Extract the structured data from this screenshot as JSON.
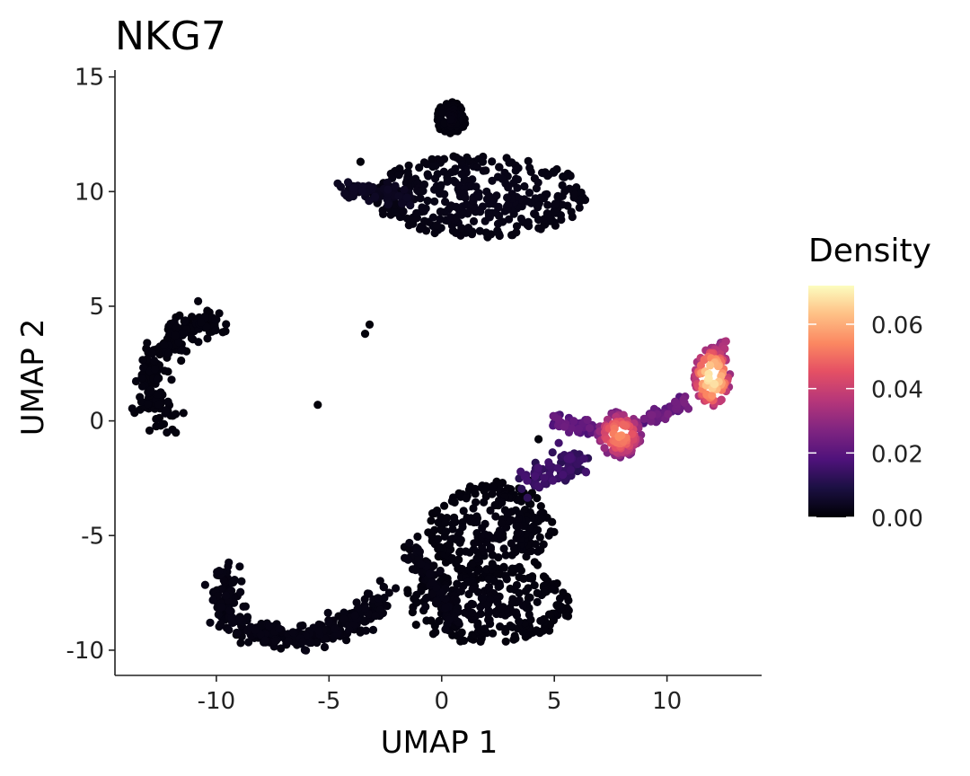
{
  "chart_data": {
    "type": "scatter",
    "title": "NKG7",
    "xlabel": "UMAP 1",
    "ylabel": "UMAP 2",
    "xlim": [
      -14.5,
      14.2
    ],
    "ylim": [
      -11.1,
      15.3
    ],
    "x_ticks": [
      -10,
      -5,
      0,
      5,
      10
    ],
    "x_tick_labels": [
      "-10",
      "-5",
      "0",
      "5",
      "10"
    ],
    "y_ticks": [
      -10,
      -5,
      0,
      5,
      10,
      15
    ],
    "y_tick_labels": [
      "-10",
      "-5",
      "0",
      "5",
      "10",
      "15"
    ],
    "color_variable": "Density",
    "colorscale": "magma",
    "color_range": [
      0.0,
      0.072
    ],
    "legend": {
      "title": "Density",
      "ticks": [
        0.0,
        0.02,
        0.04,
        0.06
      ],
      "tick_labels": [
        "0.00",
        "0.02",
        "0.04",
        "0.06"
      ],
      "position": "right"
    },
    "clusters": [
      {
        "name": "top-cluster",
        "shape": "blob",
        "cx": 1.8,
        "cy": 9.8,
        "rx": 5.0,
        "ry": 1.8,
        "density": 0.003
      },
      {
        "name": "top-tail",
        "shape": "path",
        "points": [
          [
            -4.5,
            10.2
          ],
          [
            -3.0,
            10.0
          ],
          [
            -1.5,
            9.8
          ]
        ],
        "spread": 0.3,
        "density": 0.004
      },
      {
        "name": "top-knob",
        "shape": "blob",
        "cx": 0.4,
        "cy": 13.2,
        "rx": 0.7,
        "ry": 0.7,
        "density": 0.002
      },
      {
        "name": "left-cluster",
        "shape": "path",
        "points": [
          [
            -10.0,
            4.5
          ],
          [
            -11.5,
            4.0
          ],
          [
            -12.8,
            2.5
          ],
          [
            -13.0,
            1.0
          ],
          [
            -12.0,
            0.0
          ]
        ],
        "spread": 0.6,
        "density": 0.0015
      },
      {
        "name": "bottom-arc",
        "shape": "path",
        "points": [
          [
            -9.5,
            -6.5
          ],
          [
            -9.7,
            -8.2
          ],
          [
            -8.5,
            -9.2
          ],
          [
            -6.5,
            -9.5
          ],
          [
            -4.5,
            -9.0
          ],
          [
            -3.0,
            -8.3
          ],
          [
            -2.5,
            -7.6
          ]
        ],
        "spread": 0.55,
        "density": 0.002
      },
      {
        "name": "center-cluster",
        "shape": "blob",
        "cx": 2.2,
        "cy": -4.8,
        "rx": 2.8,
        "ry": 2.2,
        "density": 0.002
      },
      {
        "name": "center-bottom",
        "shape": "blob",
        "cx": 2.0,
        "cy": -8.0,
        "rx": 3.8,
        "ry": 1.7,
        "density": 0.002
      },
      {
        "name": "center-left-arm",
        "shape": "path",
        "points": [
          [
            -1.5,
            -5.5
          ],
          [
            -0.5,
            -6.8
          ],
          [
            0.5,
            -8.8
          ]
        ],
        "spread": 0.4,
        "density": 0.002
      },
      {
        "name": "nk-arm-1",
        "shape": "path",
        "points": [
          [
            4.0,
            -2.4
          ],
          [
            5.5,
            -2.2
          ],
          [
            6.2,
            -1.8
          ]
        ],
        "spread": 0.6,
        "density": 0.014
      },
      {
        "name": "nk-arm-2",
        "shape": "path",
        "points": [
          [
            5.0,
            0.0
          ],
          [
            6.0,
            -0.2
          ],
          [
            7.0,
            -0.4
          ]
        ],
        "spread": 0.3,
        "density": 0.02
      },
      {
        "name": "nk-hotspot-1",
        "shape": "blob",
        "cx": 7.9,
        "cy": -0.6,
        "rx": 1.0,
        "ry": 1.0,
        "density": 0.055
      },
      {
        "name": "nk-bridge",
        "shape": "path",
        "points": [
          [
            9.0,
            0.0
          ],
          [
            10.0,
            0.3
          ],
          [
            10.8,
            0.8
          ]
        ],
        "spread": 0.25,
        "density": 0.022
      },
      {
        "name": "nk-hotspot-2",
        "shape": "blob",
        "cx": 12.0,
        "cy": 1.9,
        "rx": 0.8,
        "ry": 1.3,
        "density": 0.07
      },
      {
        "name": "nk-tip",
        "shape": "path",
        "points": [
          [
            12.5,
            3.5
          ],
          [
            12.3,
            2.8
          ]
        ],
        "spread": 0.2,
        "density": 0.03
      }
    ],
    "outliers": [
      [
        -3.6,
        11.3
      ],
      [
        -3.2,
        4.2
      ],
      [
        -3.4,
        3.8
      ],
      [
        -5.5,
        0.7
      ],
      [
        4.0,
        -2.6
      ],
      [
        4.3,
        -0.8
      ]
    ]
  }
}
